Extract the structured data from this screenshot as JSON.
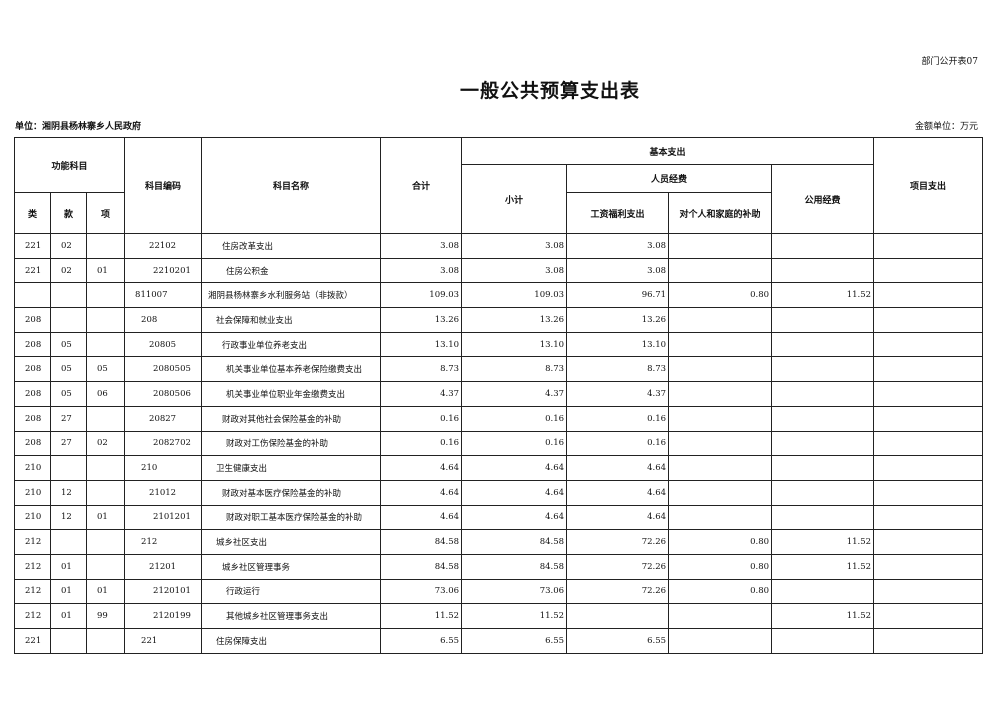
{
  "form_no": "部门公开表07",
  "title": "一般公共预算支出表",
  "unit_label": "单位：湘阴县杨林寨乡人民政府",
  "money_unit": "金额单位：万元",
  "headers": {
    "func_subject": "功能科目",
    "lei": "类",
    "kuan": "款",
    "xiang": "项",
    "code": "科目编码",
    "name": "科目名称",
    "total": "合计",
    "basic": "基本支出",
    "subtotal": "小计",
    "personnel": "人员经费",
    "salary": "工资福利支出",
    "subsidy": "对个人和家庭的补助",
    "public": "公用经费",
    "project": "项目支出"
  },
  "rows": [
    {
      "lei": "221",
      "kuan": "02",
      "xiang": "",
      "code": "22102",
      "name": "住房改革支出",
      "total": "3.08",
      "subtotal": "3.08",
      "salary": "3.08",
      "subsidy": "",
      "public": "",
      "project": ""
    },
    {
      "lei": "221",
      "kuan": "02",
      "xiang": "01",
      "code": "2210201",
      "name": "住房公积金",
      "total": "3.08",
      "subtotal": "3.08",
      "salary": "3.08",
      "subsidy": "",
      "public": "",
      "project": ""
    },
    {
      "lei": "",
      "kuan": "",
      "xiang": "",
      "code": "811007",
      "name": "湘阴县杨林寨乡水利服务站（非拨款）",
      "total": "109.03",
      "subtotal": "109.03",
      "salary": "96.71",
      "subsidy": "0.80",
      "public": "11.52",
      "project": ""
    },
    {
      "lei": "208",
      "kuan": "",
      "xiang": "",
      "code": "208",
      "name": "社会保障和就业支出",
      "total": "13.26",
      "subtotal": "13.26",
      "salary": "13.26",
      "subsidy": "",
      "public": "",
      "project": ""
    },
    {
      "lei": "208",
      "kuan": "05",
      "xiang": "",
      "code": "20805",
      "name": "行政事业单位养老支出",
      "total": "13.10",
      "subtotal": "13.10",
      "salary": "13.10",
      "subsidy": "",
      "public": "",
      "project": ""
    },
    {
      "lei": "208",
      "kuan": "05",
      "xiang": "05",
      "code": "2080505",
      "name": "机关事业单位基本养老保险缴费支出",
      "total": "8.73",
      "subtotal": "8.73",
      "salary": "8.73",
      "subsidy": "",
      "public": "",
      "project": ""
    },
    {
      "lei": "208",
      "kuan": "05",
      "xiang": "06",
      "code": "2080506",
      "name": "机关事业单位职业年金缴费支出",
      "total": "4.37",
      "subtotal": "4.37",
      "salary": "4.37",
      "subsidy": "",
      "public": "",
      "project": ""
    },
    {
      "lei": "208",
      "kuan": "27",
      "xiang": "",
      "code": "20827",
      "name": "财政对其他社会保险基金的补助",
      "total": "0.16",
      "subtotal": "0.16",
      "salary": "0.16",
      "subsidy": "",
      "public": "",
      "project": ""
    },
    {
      "lei": "208",
      "kuan": "27",
      "xiang": "02",
      "code": "2082702",
      "name": "财政对工伤保险基金的补助",
      "total": "0.16",
      "subtotal": "0.16",
      "salary": "0.16",
      "subsidy": "",
      "public": "",
      "project": ""
    },
    {
      "lei": "210",
      "kuan": "",
      "xiang": "",
      "code": "210",
      "name": "卫生健康支出",
      "total": "4.64",
      "subtotal": "4.64",
      "salary": "4.64",
      "subsidy": "",
      "public": "",
      "project": ""
    },
    {
      "lei": "210",
      "kuan": "12",
      "xiang": "",
      "code": "21012",
      "name": "财政对基本医疗保险基金的补助",
      "total": "4.64",
      "subtotal": "4.64",
      "salary": "4.64",
      "subsidy": "",
      "public": "",
      "project": ""
    },
    {
      "lei": "210",
      "kuan": "12",
      "xiang": "01",
      "code": "2101201",
      "name": "财政对职工基本医疗保险基金的补助",
      "total": "4.64",
      "subtotal": "4.64",
      "salary": "4.64",
      "subsidy": "",
      "public": "",
      "project": ""
    },
    {
      "lei": "212",
      "kuan": "",
      "xiang": "",
      "code": "212",
      "name": "城乡社区支出",
      "total": "84.58",
      "subtotal": "84.58",
      "salary": "72.26",
      "subsidy": "0.80",
      "public": "11.52",
      "project": ""
    },
    {
      "lei": "212",
      "kuan": "01",
      "xiang": "",
      "code": "21201",
      "name": "城乡社区管理事务",
      "total": "84.58",
      "subtotal": "84.58",
      "salary": "72.26",
      "subsidy": "0.80",
      "public": "11.52",
      "project": ""
    },
    {
      "lei": "212",
      "kuan": "01",
      "xiang": "01",
      "code": "2120101",
      "name": "行政运行",
      "total": "73.06",
      "subtotal": "73.06",
      "salary": "72.26",
      "subsidy": "0.80",
      "public": "",
      "project": ""
    },
    {
      "lei": "212",
      "kuan": "01",
      "xiang": "99",
      "code": "2120199",
      "name": "其他城乡社区管理事务支出",
      "total": "11.52",
      "subtotal": "11.52",
      "salary": "",
      "subsidy": "",
      "public": "11.52",
      "project": ""
    },
    {
      "lei": "221",
      "kuan": "",
      "xiang": "",
      "code": "221",
      "name": "住房保障支出",
      "total": "6.55",
      "subtotal": "6.55",
      "salary": "6.55",
      "subsidy": "",
      "public": "",
      "project": ""
    }
  ]
}
